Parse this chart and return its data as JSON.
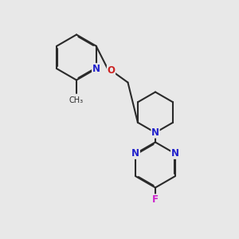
{
  "bg_color": "#e8e8e8",
  "bond_color": "#2a2a2a",
  "N_color": "#2222cc",
  "O_color": "#cc2222",
  "F_color": "#cc22cc",
  "line_width": 1.5,
  "dbo": 0.035,
  "xlim": [
    0,
    10
  ],
  "ylim": [
    0,
    10
  ]
}
